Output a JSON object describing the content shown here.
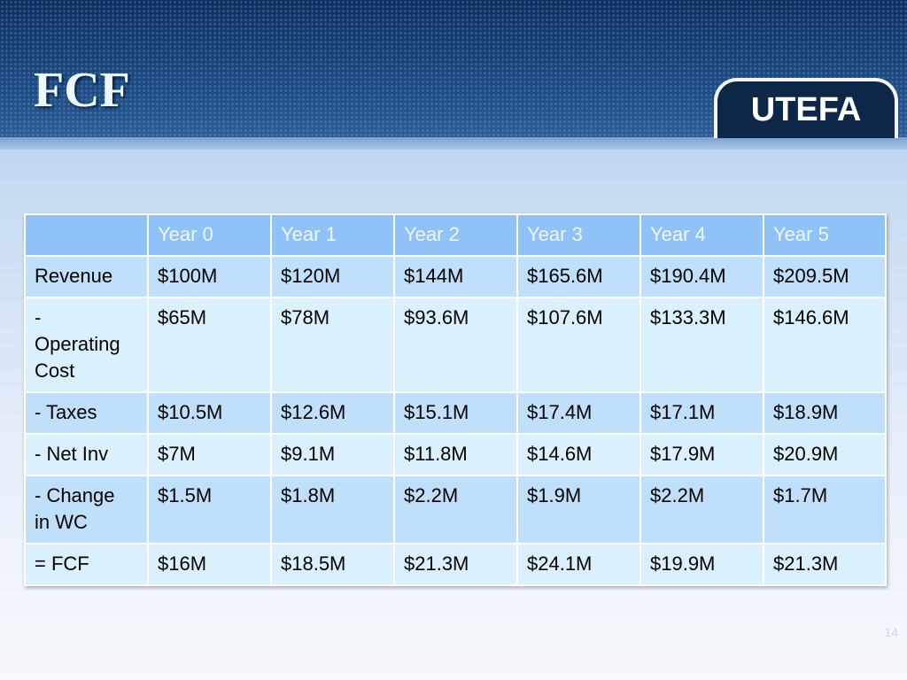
{
  "header": {
    "title": "FCF",
    "logo": "UTEFA"
  },
  "table": {
    "columns": [
      "",
      "Year 0",
      "Year 1",
      "Year 2",
      "Year 3",
      "Year 4",
      "Year 5"
    ],
    "rows": [
      [
        "Revenue",
        "$100M",
        "$120M",
        "$144M",
        "$165.6M",
        "$190.4M",
        "$209.5M"
      ],
      [
        "- Operating Cost",
        "$65M",
        "$78M",
        "$93.6M",
        "$107.6M",
        "$133.3M",
        "$146.6M"
      ],
      [
        "- Taxes",
        "$10.5M",
        "$12.6M",
        "$15.1M",
        "$17.4M",
        "$17.1M",
        "$18.9M"
      ],
      [
        "- Net Inv",
        "$7M",
        "$9.1M",
        "$11.8M",
        "$14.6M",
        "$17.9M",
        "$20.9M"
      ],
      [
        "- Change in WC",
        "$1.5M",
        "$1.8M",
        "$2.2M",
        "$1.9M",
        "$2.2M",
        "$1.7M"
      ],
      [
        "= FCF",
        "$16M",
        "$18.5M",
        "$21.3M",
        "$24.1M",
        "$19.9M",
        "$21.3M"
      ]
    ]
  },
  "footer": {
    "page_number": "14"
  }
}
